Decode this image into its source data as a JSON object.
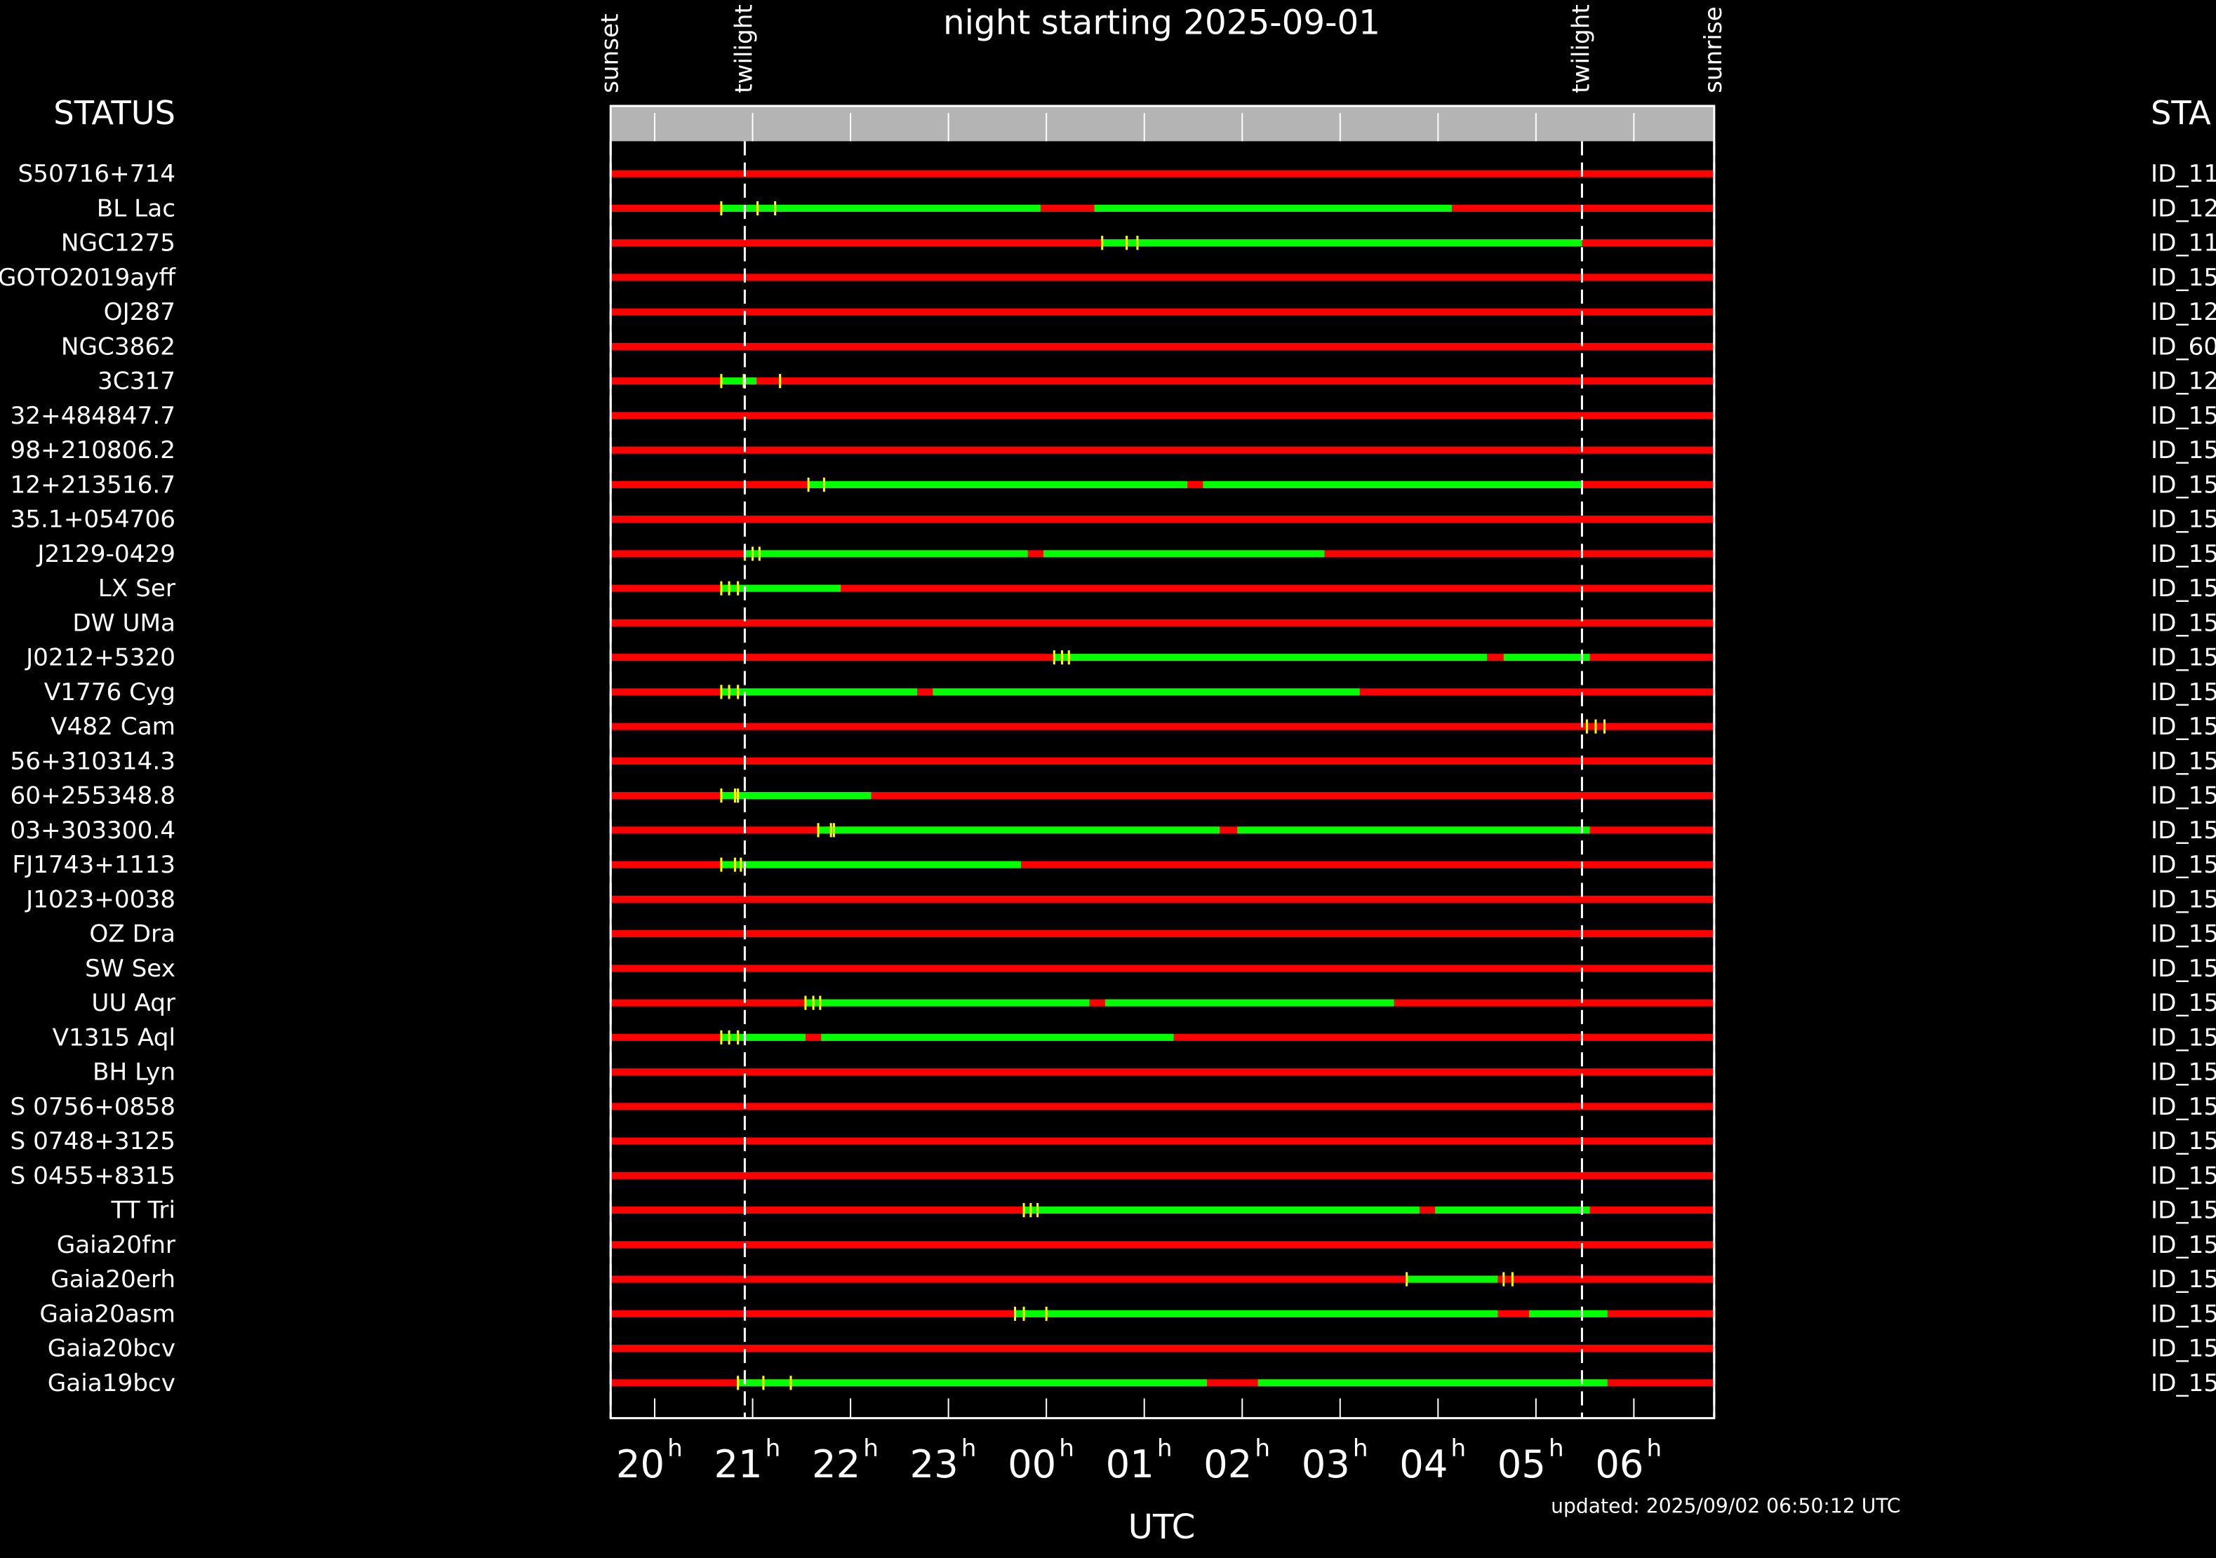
{
  "chart_data": {
    "type": "timeline",
    "title": "night starting 2025-09-01",
    "xlabel": "UTC",
    "x_unit": "h",
    "left_header": "STATUS",
    "right_header": "STA",
    "footer": "updated: 2025/09/02 06:50:12 UTC",
    "xlim": [
      19.55,
      30.82
    ],
    "xticks": [
      20,
      21,
      22,
      23,
      {
        "value": 24,
        "label": "00"
      },
      {
        "value": 25,
        "label": "01"
      },
      {
        "value": 26,
        "label": "02"
      },
      {
        "value": 27,
        "label": "03"
      },
      {
        "value": 28,
        "label": "04"
      },
      {
        "value": 29,
        "label": "05"
      },
      {
        "value": 30,
        "label": "06"
      }
    ],
    "events": [
      {
        "label": "sunset",
        "time": 19.55
      },
      {
        "label": "twilight",
        "time": 20.92
      },
      {
        "label": "twilight",
        "time": 29.47
      },
      {
        "label": "sunrise",
        "time": 30.82
      }
    ],
    "unavailable_color": "#ff0000",
    "window_color": "#00ff00",
    "observation_color": "#ffff00",
    "rows": [
      {
        "name": "S50716+714",
        "id": "ID_11",
        "windows": [],
        "observations": []
      },
      {
        "name": "BL Lac",
        "id": "ID_12",
        "windows": [
          [
            20.68,
            23.94
          ],
          [
            24.49,
            28.14
          ]
        ],
        "observations": [
          20.68,
          21.05,
          21.23
        ]
      },
      {
        "name": "NGC1275",
        "id": "ID_11",
        "windows": [
          [
            24.57,
            29.47
          ]
        ],
        "observations": [
          24.57,
          24.82,
          24.93
        ]
      },
      {
        "name": "GOTO2019ayff",
        "id": "ID_15",
        "windows": [],
        "observations": []
      },
      {
        "name": "OJ287",
        "id": "ID_12",
        "windows": [],
        "observations": []
      },
      {
        "name": "NGC3862",
        "id": "ID_60",
        "windows": [],
        "observations": []
      },
      {
        "name": "3C317",
        "id": "ID_12",
        "windows": [
          [
            20.68,
            21.04
          ]
        ],
        "observations": [
          20.68,
          20.91,
          21.28
        ]
      },
      {
        "name": "32+484847.7",
        "id": "ID_15",
        "windows": [],
        "observations": []
      },
      {
        "name": "98+210806.2",
        "id": "ID_15",
        "windows": [],
        "observations": []
      },
      {
        "name": "12+213516.7",
        "id": "ID_15",
        "windows": [
          [
            21.57,
            25.44
          ],
          [
            25.6,
            29.47
          ]
        ],
        "observations": [
          21.57,
          21.73
        ]
      },
      {
        "name": "35.1+054706",
        "id": "ID_15",
        "windows": [],
        "observations": []
      },
      {
        "name": "J2129-0429",
        "id": "ID_15",
        "windows": [
          [
            20.92,
            23.81
          ],
          [
            23.97,
            26.84
          ]
        ],
        "observations": [
          20.92,
          21.0,
          21.07
        ]
      },
      {
        "name": "LX Ser",
        "id": "ID_15",
        "windows": [
          [
            20.68,
            21.9
          ]
        ],
        "observations": [
          20.68,
          20.76,
          20.85
        ]
      },
      {
        "name": "DW UMa",
        "id": "ID_15",
        "windows": [],
        "observations": []
      },
      {
        "name": "J0212+5320",
        "id": "ID_15",
        "windows": [
          [
            24.08,
            28.5
          ],
          [
            28.67,
            29.55
          ]
        ],
        "observations": [
          24.08,
          24.16,
          24.23
        ]
      },
      {
        "name": "V1776 Cyg",
        "id": "ID_15",
        "windows": [
          [
            20.68,
            22.68
          ],
          [
            22.84,
            27.2
          ]
        ],
        "observations": [
          20.68,
          20.76,
          20.85
        ]
      },
      {
        "name": "V482 Cam",
        "id": "ID_15",
        "windows": [],
        "observations": [
          29.52,
          29.61,
          29.7
        ]
      },
      {
        "name": "56+310314.3",
        "id": "ID_15",
        "windows": [],
        "observations": []
      },
      {
        "name": "60+255348.8",
        "id": "ID_15",
        "windows": [
          [
            20.68,
            22.21
          ]
        ],
        "observations": [
          20.68,
          20.82,
          20.85
        ]
      },
      {
        "name": "03+303300.4",
        "id": "ID_15",
        "windows": [
          [
            21.67,
            25.77
          ],
          [
            25.95,
            29.55
          ]
        ],
        "observations": [
          21.67,
          21.8,
          21.83
        ]
      },
      {
        "name": "FJ1743+1113",
        "id": "ID_15",
        "windows": [
          [
            20.68,
            23.74
          ]
        ],
        "observations": [
          20.68,
          20.82,
          20.88
        ]
      },
      {
        "name": "J1023+0038",
        "id": "ID_15",
        "windows": [],
        "observations": []
      },
      {
        "name": "OZ Dra",
        "id": "ID_15",
        "windows": [],
        "observations": []
      },
      {
        "name": "SW Sex",
        "id": "ID_15",
        "windows": [],
        "observations": []
      },
      {
        "name": "UU Aqr",
        "id": "ID_15",
        "windows": [
          [
            21.54,
            24.44
          ],
          [
            24.6,
            27.55
          ]
        ],
        "observations": [
          21.54,
          21.62,
          21.69
        ]
      },
      {
        "name": "V1315 Aql",
        "id": "ID_15",
        "windows": [
          [
            20.68,
            21.54
          ],
          [
            21.7,
            25.3
          ]
        ],
        "observations": [
          20.68,
          20.76,
          20.85
        ]
      },
      {
        "name": "BH Lyn",
        "id": "ID_15",
        "windows": [],
        "observations": []
      },
      {
        "name": "S 0756+0858",
        "id": "ID_15",
        "windows": [],
        "observations": []
      },
      {
        "name": "S 0748+3125",
        "id": "ID_15",
        "windows": [],
        "observations": []
      },
      {
        "name": "S 0455+8315",
        "id": "ID_15",
        "windows": [],
        "observations": []
      },
      {
        "name": "TT Tri",
        "id": "ID_15",
        "windows": [
          [
            23.77,
            27.81
          ],
          [
            27.97,
            29.55
          ]
        ],
        "observations": [
          23.77,
          23.84,
          23.91
        ]
      },
      {
        "name": "Gaia20fnr",
        "id": "ID_15",
        "windows": [],
        "observations": []
      },
      {
        "name": "Gaia20erh",
        "id": "ID_15",
        "windows": [
          [
            27.68,
            28.61
          ]
        ],
        "observations": [
          27.68,
          28.67,
          28.76
        ]
      },
      {
        "name": "Gaia20asm",
        "id": "ID_15",
        "windows": [
          [
            23.68,
            28.61
          ],
          [
            28.93,
            29.73
          ]
        ],
        "observations": [
          23.68,
          23.77,
          24.0
        ]
      },
      {
        "name": "Gaia20bcv",
        "id": "ID_15",
        "windows": [],
        "observations": []
      },
      {
        "name": "Gaia19bcv",
        "id": "ID_15",
        "windows": [
          [
            20.85,
            25.64
          ],
          [
            26.16,
            29.73
          ]
        ],
        "observations": [
          20.85,
          21.11,
          21.39
        ]
      }
    ]
  }
}
